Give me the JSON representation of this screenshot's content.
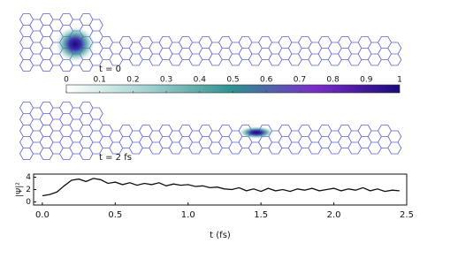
{
  "chart_data": [
    {
      "type": "lattice",
      "label": "t = 0"
    },
    {
      "type": "colorbar",
      "colors": [
        "#ffffff",
        "#9fd0cf",
        "#2f8f8f",
        "#7a2cc9",
        "#1a0a7a"
      ],
      "xlim": [
        0,
        1
      ],
      "xticks": [
        0,
        0.1,
        0.2,
        0.3,
        0.4,
        0.5,
        0.6,
        0.7,
        0.8,
        0.9,
        1
      ]
    },
    {
      "type": "lattice",
      "label": "t = 2 fs"
    },
    {
      "type": "line",
      "xlabel": "t (fs)",
      "ylabel": "|Ψ|²",
      "color": "#111111",
      "x": [
        0,
        0.05,
        0.1,
        0.15,
        0.2,
        0.25,
        0.3,
        0.35,
        0.4,
        0.45,
        0.5,
        0.55,
        0.6,
        0.65,
        0.7,
        0.75,
        0.8,
        0.85,
        0.9,
        0.95,
        1.0,
        1.05,
        1.1,
        1.15,
        1.2,
        1.25,
        1.3,
        1.35,
        1.4,
        1.45,
        1.5,
        1.55,
        1.6,
        1.65,
        1.7,
        1.75,
        1.8,
        1.85,
        1.9,
        1.95,
        2.0,
        2.05,
        2.1,
        2.15,
        2.2,
        2.25,
        2.3,
        2.35,
        2.4,
        2.45
      ],
      "values": [
        1.0,
        1.2,
        1.6,
        2.6,
        3.5,
        3.7,
        3.3,
        3.8,
        3.6,
        3.0,
        3.2,
        2.8,
        3.1,
        2.7,
        3.0,
        2.8,
        3.1,
        2.6,
        2.9,
        2.7,
        2.8,
        2.5,
        2.6,
        2.3,
        2.4,
        2.1,
        2.0,
        2.3,
        1.8,
        2.1,
        1.7,
        2.2,
        1.8,
        2.0,
        1.7,
        2.1,
        1.9,
        2.2,
        1.8,
        2.0,
        2.2,
        1.8,
        2.1,
        1.9,
        2.3,
        1.8,
        2.1,
        1.7,
        1.9,
        1.8
      ],
      "xlim": [
        -0.06,
        2.5
      ],
      "ylim": [
        -0.5,
        4.5
      ],
      "xticks": [
        {
          "value": 0,
          "label": "0.0"
        },
        0.5,
        {
          "value": 1,
          "label": "1.0"
        },
        1.5,
        {
          "value": 2,
          "label": "2.0"
        },
        2.5
      ],
      "yticks": [
        0,
        2,
        4
      ]
    }
  ]
}
